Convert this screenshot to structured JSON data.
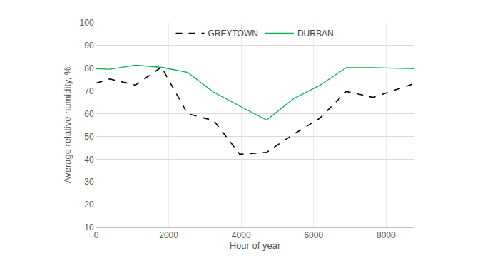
{
  "chart_data": {
    "type": "line",
    "x_label": "Hour of year",
    "y_label": "Average relative humidity, %",
    "x": [
      0,
      372,
      1080,
      1800,
      2520,
      3240,
      3960,
      4700,
      5450,
      6170,
      6900,
      7640,
      8760
    ],
    "series": [
      {
        "name": "GREYTOWN",
        "color": "#000000",
        "line_style": "dash",
        "values": [
          73.5,
          75.3,
          72.6,
          80.5,
          60,
          57,
          42.2,
          43,
          51,
          58,
          69.8,
          67.2,
          73.2
        ]
      },
      {
        "name": "DURBAN",
        "color": "#00b050",
        "line_style": "solid",
        "values": [
          79.8,
          79.6,
          81.4,
          80.4,
          78.2,
          69.5,
          63.4,
          57.2,
          66.7,
          72.5,
          80.3,
          80.3,
          79.8
        ]
      }
    ],
    "xlim": [
      0,
      8760
    ],
    "xticks": [
      0,
      2000,
      4000,
      6000,
      8000
    ],
    "ylim": [
      10,
      100
    ],
    "yticks": [
      10,
      20,
      30,
      40,
      50,
      60,
      70,
      80,
      90,
      100
    ],
    "grid": true,
    "legend": "top"
  }
}
